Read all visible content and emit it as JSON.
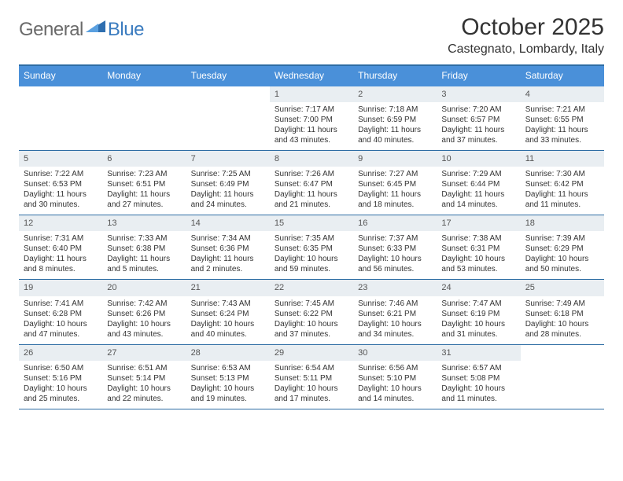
{
  "brand": {
    "general": "General",
    "blue": "Blue"
  },
  "title": "October 2025",
  "location": "Castegnato, Lombardy, Italy",
  "colors": {
    "header_bg": "#4a90d9",
    "header_border": "#2e6da4",
    "daybar_bg": "#e9eef2",
    "text": "#333333",
    "logo_gray": "#6a6a6a",
    "logo_blue": "#3a7bbf",
    "page_bg": "#ffffff"
  },
  "day_headers": [
    "Sunday",
    "Monday",
    "Tuesday",
    "Wednesday",
    "Thursday",
    "Friday",
    "Saturday"
  ],
  "weeks": [
    [
      null,
      null,
      null,
      {
        "n": "1",
        "sr": "Sunrise: 7:17 AM",
        "ss": "Sunset: 7:00 PM",
        "d1": "Daylight: 11 hours",
        "d2": "and 43 minutes."
      },
      {
        "n": "2",
        "sr": "Sunrise: 7:18 AM",
        "ss": "Sunset: 6:59 PM",
        "d1": "Daylight: 11 hours",
        "d2": "and 40 minutes."
      },
      {
        "n": "3",
        "sr": "Sunrise: 7:20 AM",
        "ss": "Sunset: 6:57 PM",
        "d1": "Daylight: 11 hours",
        "d2": "and 37 minutes."
      },
      {
        "n": "4",
        "sr": "Sunrise: 7:21 AM",
        "ss": "Sunset: 6:55 PM",
        "d1": "Daylight: 11 hours",
        "d2": "and 33 minutes."
      }
    ],
    [
      {
        "n": "5",
        "sr": "Sunrise: 7:22 AM",
        "ss": "Sunset: 6:53 PM",
        "d1": "Daylight: 11 hours",
        "d2": "and 30 minutes."
      },
      {
        "n": "6",
        "sr": "Sunrise: 7:23 AM",
        "ss": "Sunset: 6:51 PM",
        "d1": "Daylight: 11 hours",
        "d2": "and 27 minutes."
      },
      {
        "n": "7",
        "sr": "Sunrise: 7:25 AM",
        "ss": "Sunset: 6:49 PM",
        "d1": "Daylight: 11 hours",
        "d2": "and 24 minutes."
      },
      {
        "n": "8",
        "sr": "Sunrise: 7:26 AM",
        "ss": "Sunset: 6:47 PM",
        "d1": "Daylight: 11 hours",
        "d2": "and 21 minutes."
      },
      {
        "n": "9",
        "sr": "Sunrise: 7:27 AM",
        "ss": "Sunset: 6:45 PM",
        "d1": "Daylight: 11 hours",
        "d2": "and 18 minutes."
      },
      {
        "n": "10",
        "sr": "Sunrise: 7:29 AM",
        "ss": "Sunset: 6:44 PM",
        "d1": "Daylight: 11 hours",
        "d2": "and 14 minutes."
      },
      {
        "n": "11",
        "sr": "Sunrise: 7:30 AM",
        "ss": "Sunset: 6:42 PM",
        "d1": "Daylight: 11 hours",
        "d2": "and 11 minutes."
      }
    ],
    [
      {
        "n": "12",
        "sr": "Sunrise: 7:31 AM",
        "ss": "Sunset: 6:40 PM",
        "d1": "Daylight: 11 hours",
        "d2": "and 8 minutes."
      },
      {
        "n": "13",
        "sr": "Sunrise: 7:33 AM",
        "ss": "Sunset: 6:38 PM",
        "d1": "Daylight: 11 hours",
        "d2": "and 5 minutes."
      },
      {
        "n": "14",
        "sr": "Sunrise: 7:34 AM",
        "ss": "Sunset: 6:36 PM",
        "d1": "Daylight: 11 hours",
        "d2": "and 2 minutes."
      },
      {
        "n": "15",
        "sr": "Sunrise: 7:35 AM",
        "ss": "Sunset: 6:35 PM",
        "d1": "Daylight: 10 hours",
        "d2": "and 59 minutes."
      },
      {
        "n": "16",
        "sr": "Sunrise: 7:37 AM",
        "ss": "Sunset: 6:33 PM",
        "d1": "Daylight: 10 hours",
        "d2": "and 56 minutes."
      },
      {
        "n": "17",
        "sr": "Sunrise: 7:38 AM",
        "ss": "Sunset: 6:31 PM",
        "d1": "Daylight: 10 hours",
        "d2": "and 53 minutes."
      },
      {
        "n": "18",
        "sr": "Sunrise: 7:39 AM",
        "ss": "Sunset: 6:29 PM",
        "d1": "Daylight: 10 hours",
        "d2": "and 50 minutes."
      }
    ],
    [
      {
        "n": "19",
        "sr": "Sunrise: 7:41 AM",
        "ss": "Sunset: 6:28 PM",
        "d1": "Daylight: 10 hours",
        "d2": "and 47 minutes."
      },
      {
        "n": "20",
        "sr": "Sunrise: 7:42 AM",
        "ss": "Sunset: 6:26 PM",
        "d1": "Daylight: 10 hours",
        "d2": "and 43 minutes."
      },
      {
        "n": "21",
        "sr": "Sunrise: 7:43 AM",
        "ss": "Sunset: 6:24 PM",
        "d1": "Daylight: 10 hours",
        "d2": "and 40 minutes."
      },
      {
        "n": "22",
        "sr": "Sunrise: 7:45 AM",
        "ss": "Sunset: 6:22 PM",
        "d1": "Daylight: 10 hours",
        "d2": "and 37 minutes."
      },
      {
        "n": "23",
        "sr": "Sunrise: 7:46 AM",
        "ss": "Sunset: 6:21 PM",
        "d1": "Daylight: 10 hours",
        "d2": "and 34 minutes."
      },
      {
        "n": "24",
        "sr": "Sunrise: 7:47 AM",
        "ss": "Sunset: 6:19 PM",
        "d1": "Daylight: 10 hours",
        "d2": "and 31 minutes."
      },
      {
        "n": "25",
        "sr": "Sunrise: 7:49 AM",
        "ss": "Sunset: 6:18 PM",
        "d1": "Daylight: 10 hours",
        "d2": "and 28 minutes."
      }
    ],
    [
      {
        "n": "26",
        "sr": "Sunrise: 6:50 AM",
        "ss": "Sunset: 5:16 PM",
        "d1": "Daylight: 10 hours",
        "d2": "and 25 minutes."
      },
      {
        "n": "27",
        "sr": "Sunrise: 6:51 AM",
        "ss": "Sunset: 5:14 PM",
        "d1": "Daylight: 10 hours",
        "d2": "and 22 minutes."
      },
      {
        "n": "28",
        "sr": "Sunrise: 6:53 AM",
        "ss": "Sunset: 5:13 PM",
        "d1": "Daylight: 10 hours",
        "d2": "and 19 minutes."
      },
      {
        "n": "29",
        "sr": "Sunrise: 6:54 AM",
        "ss": "Sunset: 5:11 PM",
        "d1": "Daylight: 10 hours",
        "d2": "and 17 minutes."
      },
      {
        "n": "30",
        "sr": "Sunrise: 6:56 AM",
        "ss": "Sunset: 5:10 PM",
        "d1": "Daylight: 10 hours",
        "d2": "and 14 minutes."
      },
      {
        "n": "31",
        "sr": "Sunrise: 6:57 AM",
        "ss": "Sunset: 5:08 PM",
        "d1": "Daylight: 10 hours",
        "d2": "and 11 minutes."
      },
      null
    ]
  ]
}
